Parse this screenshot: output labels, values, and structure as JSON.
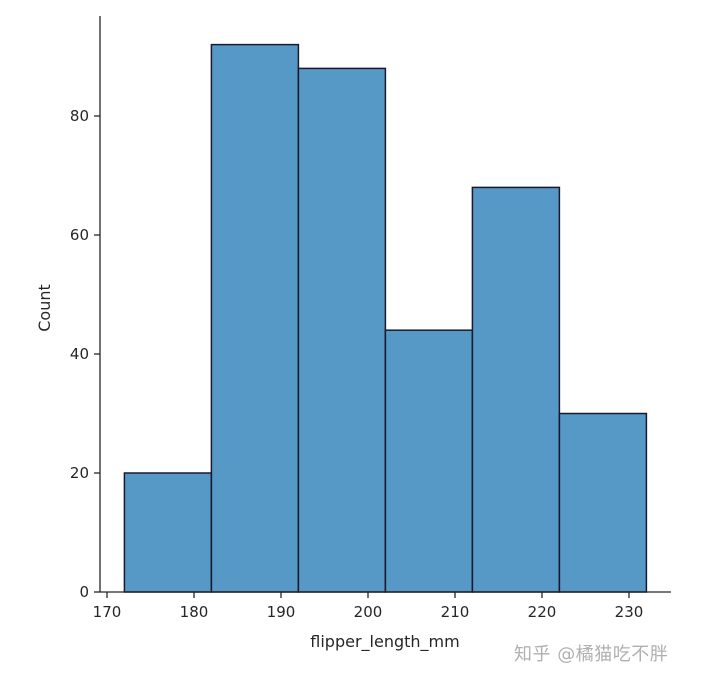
{
  "chart_data": {
    "type": "bar",
    "subtype": "histogram",
    "title": "",
    "xlabel": "flipper_length_mm",
    "ylabel": "Count",
    "bins": [
      {
        "start": 172,
        "end": 182,
        "count": 20
      },
      {
        "start": 182,
        "end": 192,
        "count": 92
      },
      {
        "start": 192,
        "end": 202,
        "count": 88
      },
      {
        "start": 202,
        "end": 212,
        "count": 44
      },
      {
        "start": 212,
        "end": 222,
        "count": 68
      },
      {
        "start": 222,
        "end": 232,
        "count": 30
      }
    ],
    "categories": [
      "172-182",
      "182-192",
      "192-202",
      "202-212",
      "212-222",
      "222-232"
    ],
    "values": [
      20,
      92,
      88,
      44,
      68,
      30
    ],
    "xticks": [
      170,
      180,
      190,
      200,
      210,
      220,
      230
    ],
    "yticks": [
      0,
      20,
      40,
      60,
      80
    ],
    "xlim": [
      169,
      235
    ],
    "ylim": [
      0,
      96.6
    ],
    "grid": false,
    "legend": null,
    "colors": {
      "bar_fill": "#5698c6",
      "bar_edge": "#1a1a2e",
      "axis": "#262626"
    }
  },
  "watermark": "知乎 @橘猫吃不胖"
}
